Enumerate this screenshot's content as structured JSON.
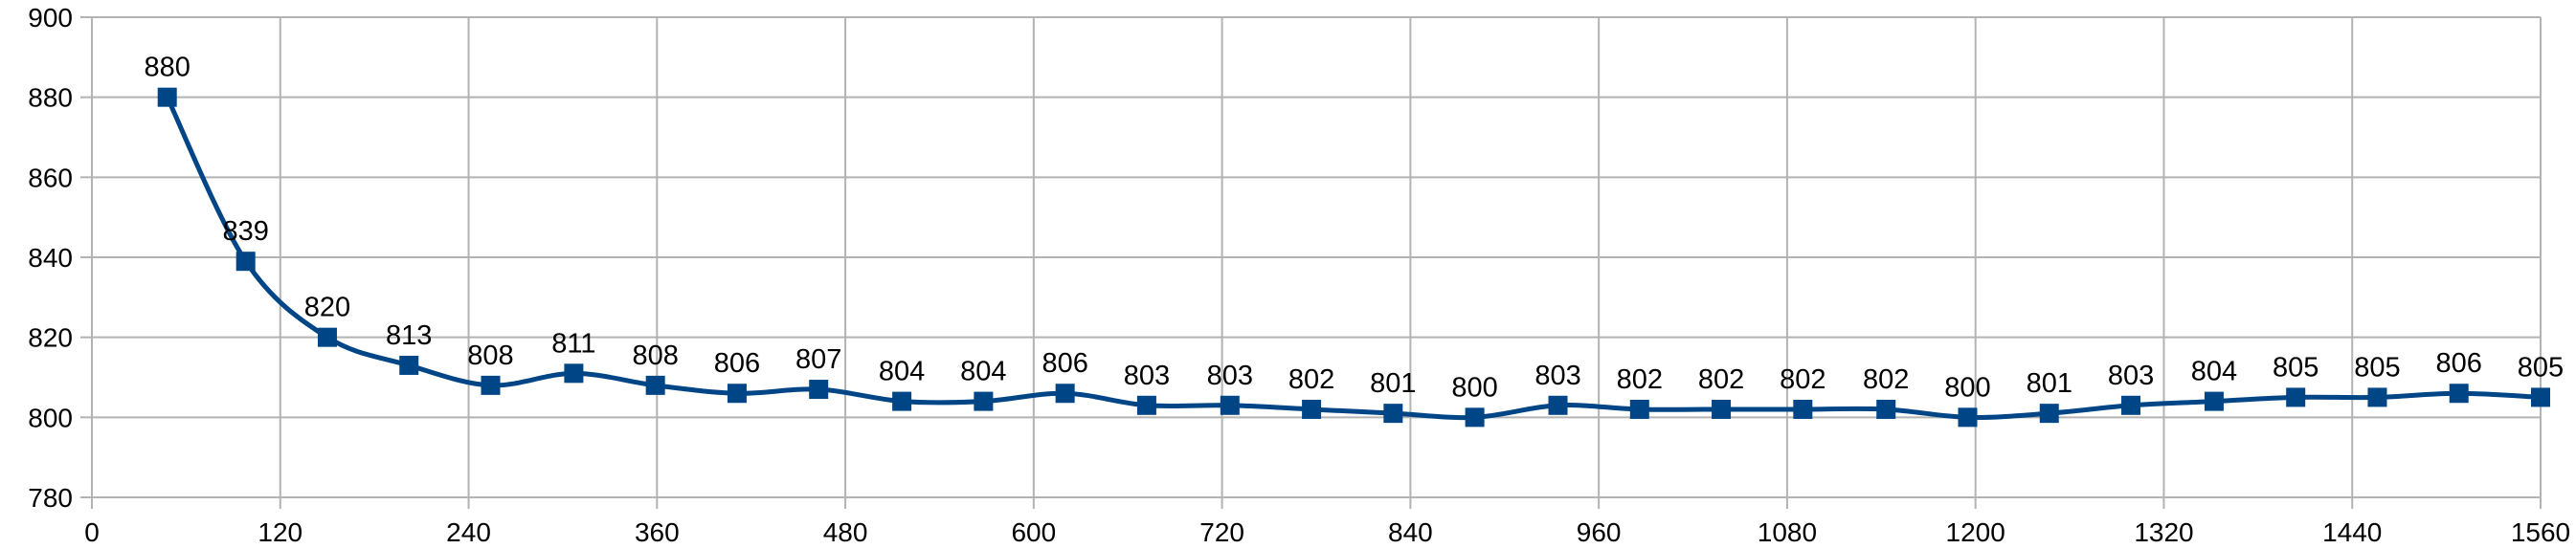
{
  "chart_data": {
    "type": "line",
    "title": "",
    "xlabel": "",
    "ylabel": "",
    "xlim": [
      0,
      1560
    ],
    "ylim": [
      780,
      900
    ],
    "x_ticks": [
      0,
      120,
      240,
      360,
      480,
      600,
      720,
      840,
      960,
      1080,
      1200,
      1320,
      1440,
      1560
    ],
    "y_ticks": [
      780,
      800,
      820,
      840,
      860,
      880,
      900
    ],
    "grid": true,
    "legend": "none",
    "smooth": true,
    "marker": "square",
    "color": "#004586",
    "grid_color": "#b3b3b3",
    "series": [
      {
        "x": [
          48,
          98,
          150,
          202,
          254,
          307,
          359,
          411,
          463,
          516,
          568,
          620,
          672,
          725,
          777,
          829,
          881,
          934,
          986,
          1038,
          1090,
          1143,
          1195,
          1247,
          1299,
          1352,
          1404,
          1456,
          1508,
          1560
        ],
        "values": [
          880,
          839,
          820,
          813,
          808,
          811,
          808,
          806,
          807,
          804,
          804,
          806,
          803,
          803,
          802,
          801,
          800,
          803,
          802,
          802,
          802,
          802,
          800,
          801,
          803,
          804,
          805,
          805,
          806,
          805
        ],
        "labels": [
          "880",
          "839",
          "820",
          "813",
          "808",
          "811",
          "808",
          "806",
          "807",
          "804",
          "804",
          "806",
          "803",
          "803",
          "802",
          "801",
          "800",
          "803",
          "802",
          "802",
          "802",
          "802",
          "800",
          "801",
          "803",
          "804",
          "805",
          "805",
          "806",
          "805"
        ]
      }
    ]
  }
}
